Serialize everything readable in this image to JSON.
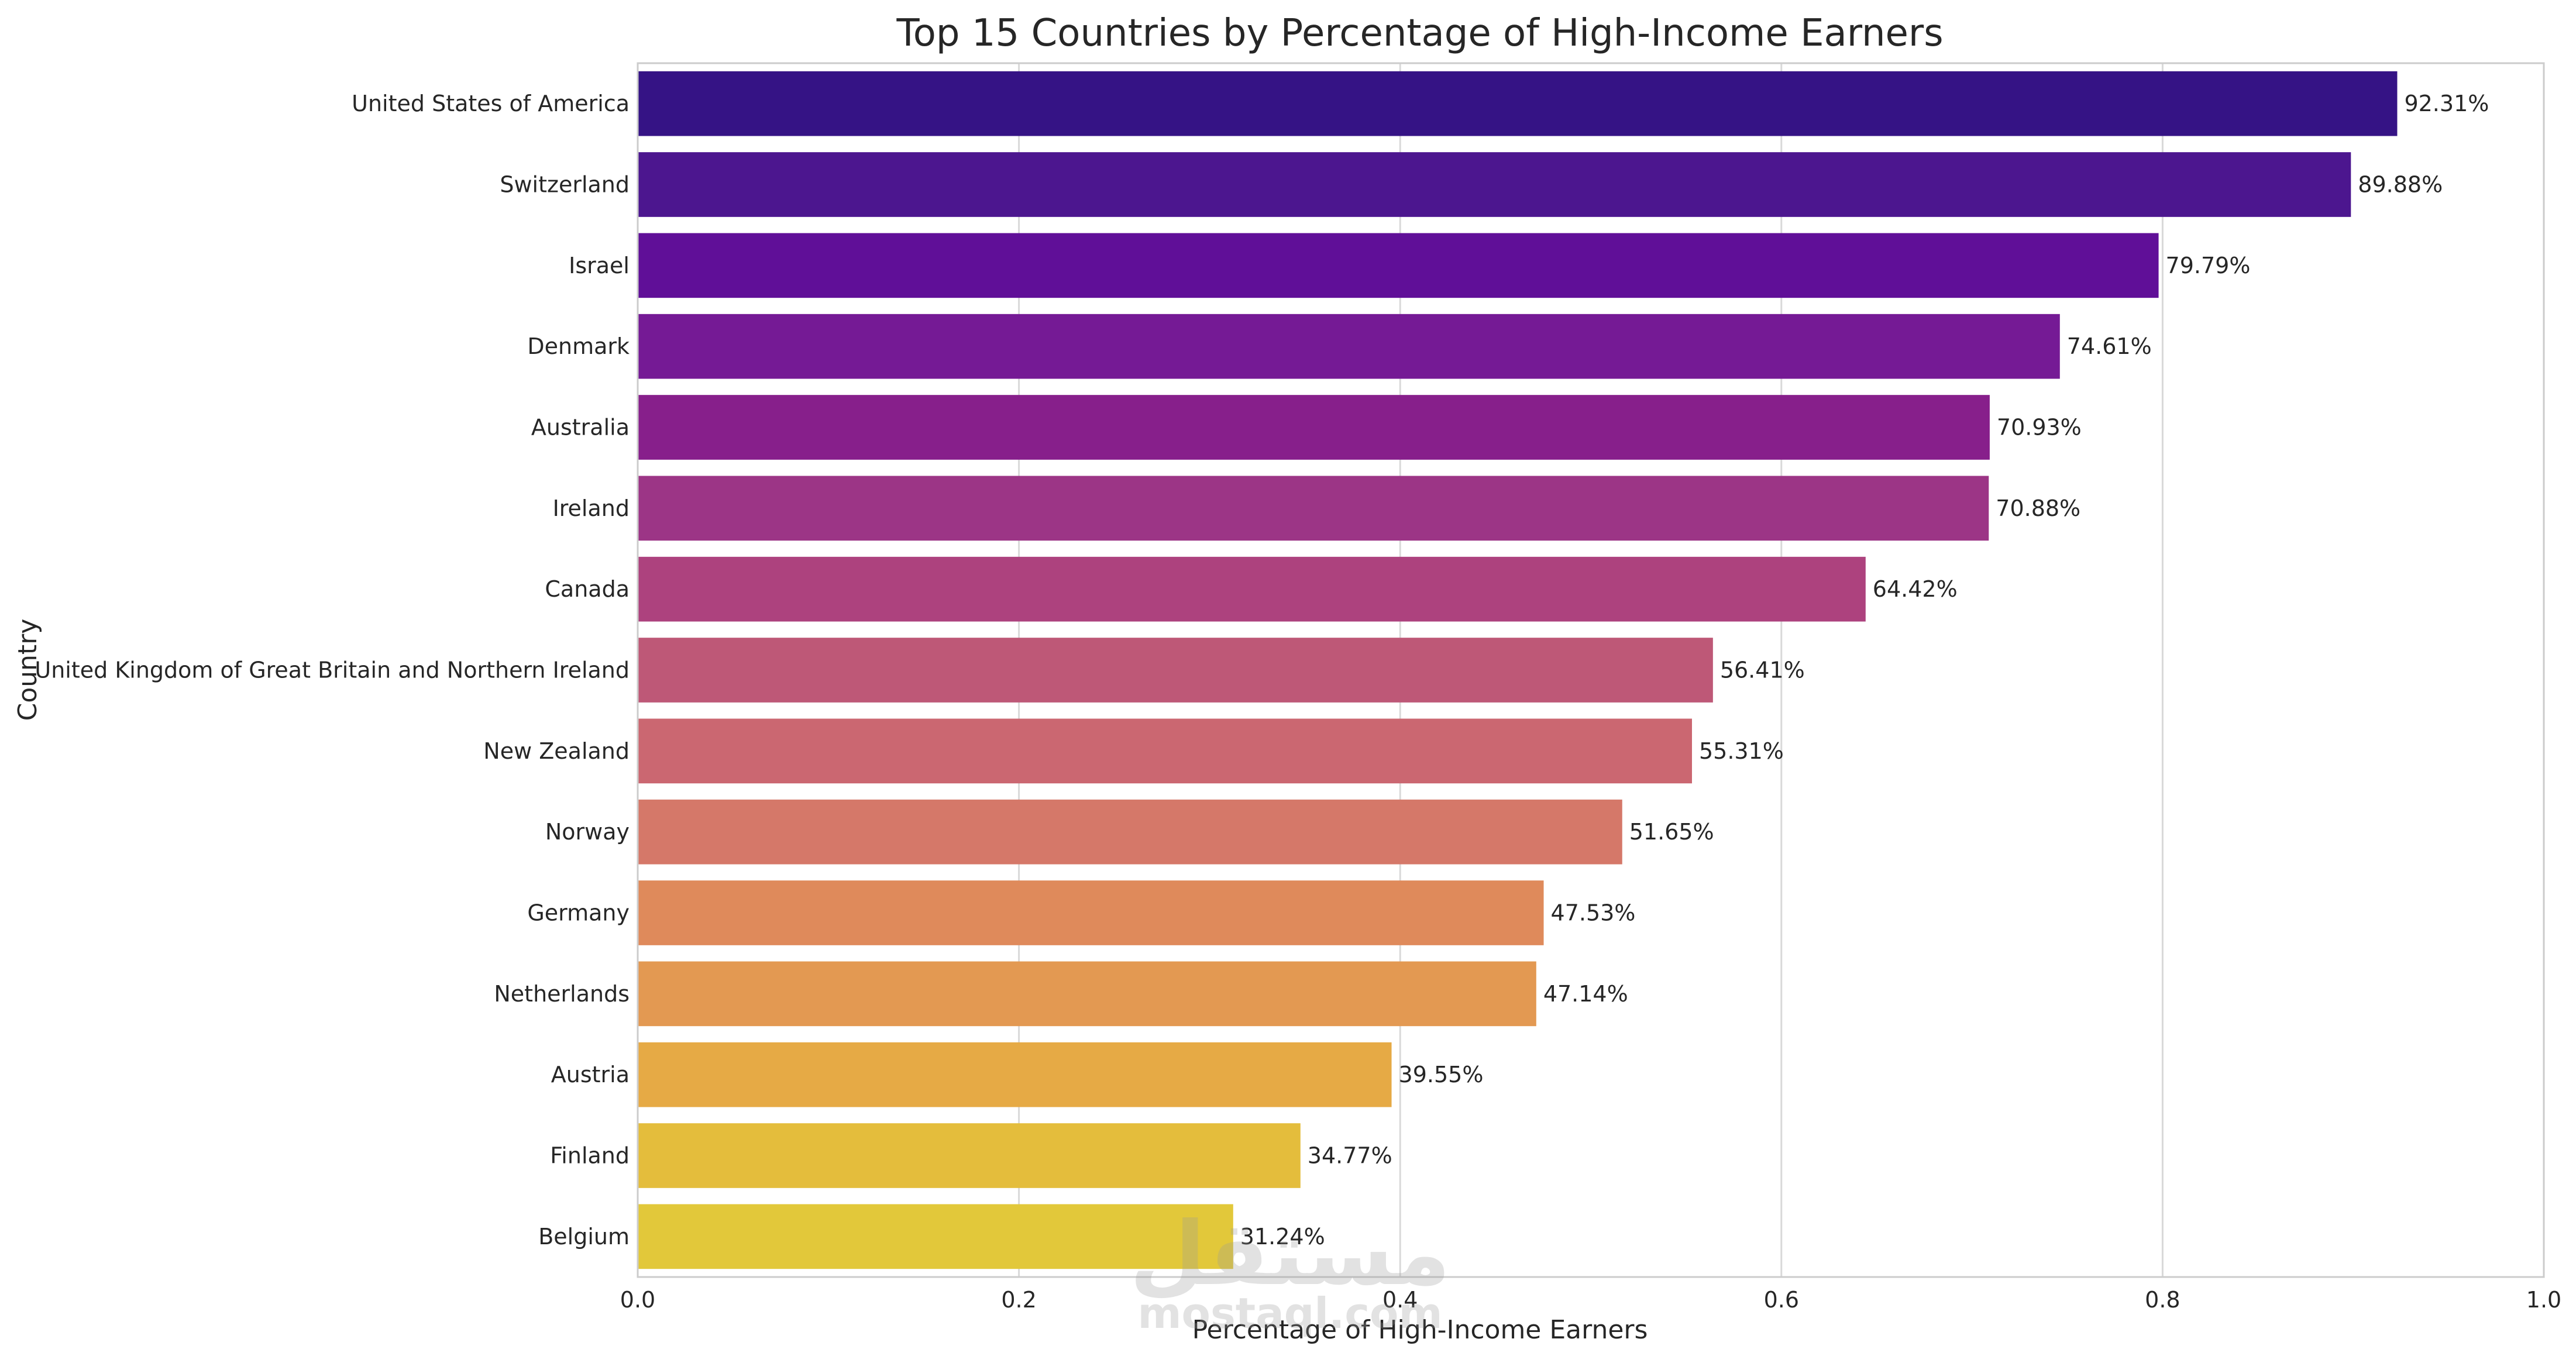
{
  "chart_data": {
    "type": "bar",
    "orientation": "horizontal",
    "title": "Top 15 Countries by Percentage of High-Income Earners",
    "xlabel": "Percentage of High-Income Earners",
    "ylabel": "Country",
    "xlim": [
      0,
      1.0
    ],
    "x_ticks": [
      "0.0",
      "0.2",
      "0.4",
      "0.6",
      "0.8",
      "1.0"
    ],
    "x_tick_values": [
      0.0,
      0.2,
      0.4,
      0.6,
      0.8,
      1.0
    ],
    "grid": true,
    "legend": "none",
    "categories": [
      "United States of America",
      "Switzerland",
      "Israel",
      "Denmark",
      "Australia",
      "Ireland",
      "Canada",
      "United Kingdom of Great Britain and Northern Ireland",
      "New Zealand",
      "Norway",
      "Germany",
      "Netherlands",
      "Austria",
      "Finland",
      "Belgium"
    ],
    "values": [
      0.9231,
      0.8988,
      0.7979,
      0.7461,
      0.7093,
      0.7088,
      0.6442,
      0.5641,
      0.5531,
      0.5165,
      0.4753,
      0.4714,
      0.3955,
      0.3477,
      0.3124
    ],
    "data_labels": [
      "92.31%",
      "89.88%",
      "79.79%",
      "74.61%",
      "70.93%",
      "70.88%",
      "64.42%",
      "56.41%",
      "55.31%",
      "51.65%",
      "47.53%",
      "47.14%",
      "39.55%",
      "34.77%",
      "31.24%"
    ],
    "colors": [
      "#351385",
      "#4c168f",
      "#600f98",
      "#751a95",
      "#871f8b",
      "#9c3586",
      "#ad427e",
      "#be5877",
      "#cb6771",
      "#d57869",
      "#df8a5b",
      "#e39952",
      "#e6aa45",
      "#e4bd3c",
      "#e2c83a"
    ],
    "palette": "plasma"
  },
  "watermark": {
    "arabic_text": "مستقل",
    "latin_text": "mostaql.com"
  }
}
